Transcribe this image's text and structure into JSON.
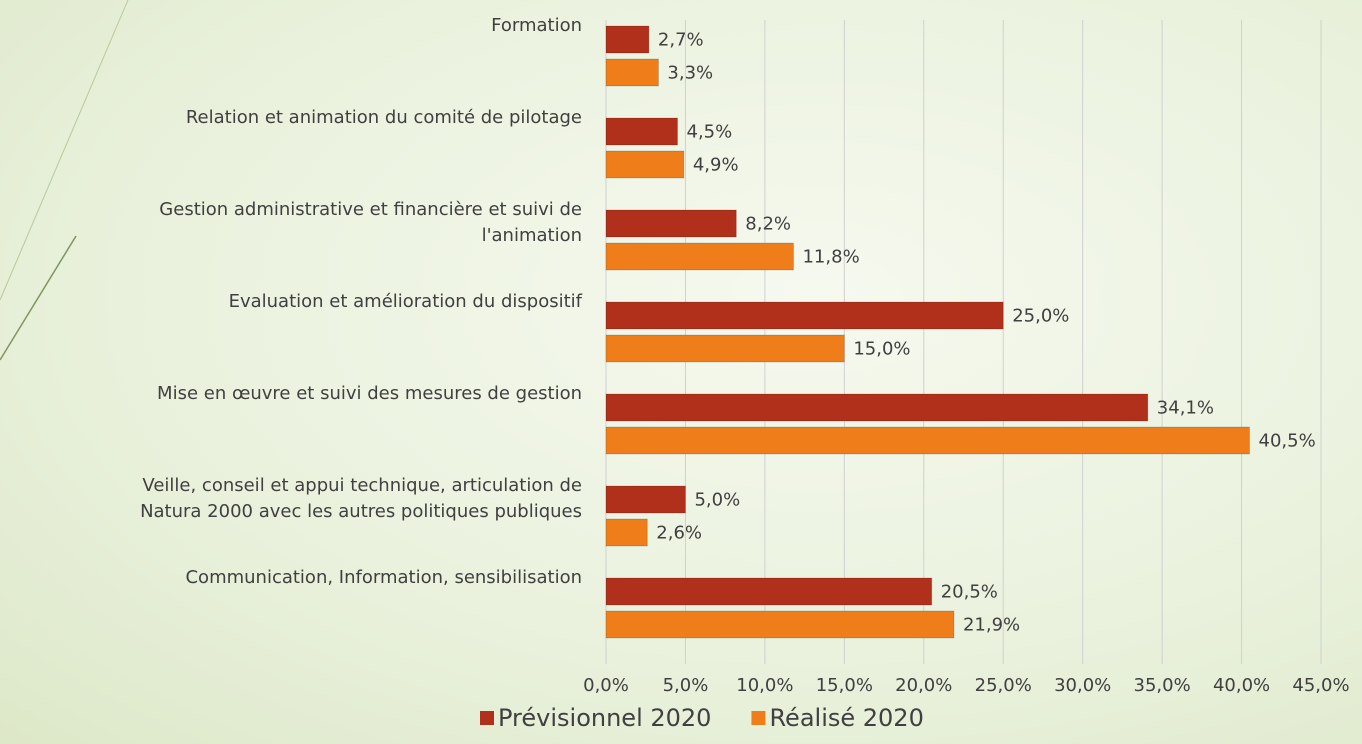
{
  "chart_data": {
    "type": "bar",
    "orientation": "horizontal",
    "categories": [
      "Formation",
      "Relation et animation du comité de pilotage",
      "Gestion administrative et financière et suivi de\nl'animation",
      "Evaluation et amélioration du dispositif",
      "Mise en œuvre et suivi des mesures de gestion",
      "Veille, conseil et appui technique, articulation de\nNatura 2000 avec les autres politiques publiques",
      "Communication, Information, sensibilisation"
    ],
    "series": [
      {
        "name": "Prévisionnel 2020",
        "color": "#b0301c",
        "values": [
          2.7,
          4.5,
          8.2,
          25.0,
          34.1,
          5.0,
          20.5
        ],
        "value_labels": [
          "2,7%",
          "4,5%",
          "8,2%",
          "25,0%",
          "34,1%",
          "5,0%",
          "20,5%"
        ]
      },
      {
        "name": "Réalisé 2020",
        "color": "#ee7d1a",
        "values": [
          3.3,
          4.9,
          11.8,
          15.0,
          40.5,
          2.6,
          21.9
        ],
        "value_labels": [
          "3,3%",
          "4,9%",
          "11,8%",
          "15,0%",
          "40,5%",
          "2,6%",
          "21,9%"
        ]
      }
    ],
    "xlim": [
      0,
      45
    ],
    "xticks": [
      {
        "value": 0,
        "label": "0,0%"
      },
      {
        "value": 5,
        "label": "5,0%"
      },
      {
        "value": 10,
        "label": "10,0%"
      },
      {
        "value": 15,
        "label": "15,0%"
      },
      {
        "value": 20,
        "label": "20,0%"
      },
      {
        "value": 25,
        "label": "25,0%"
      },
      {
        "value": 30,
        "label": "30,0%"
      },
      {
        "value": 35,
        "label": "35,0%"
      },
      {
        "value": 40,
        "label": "40,0%"
      },
      {
        "value": 45,
        "label": "45,0%"
      }
    ],
    "grid": true,
    "legend": "bottom"
  }
}
